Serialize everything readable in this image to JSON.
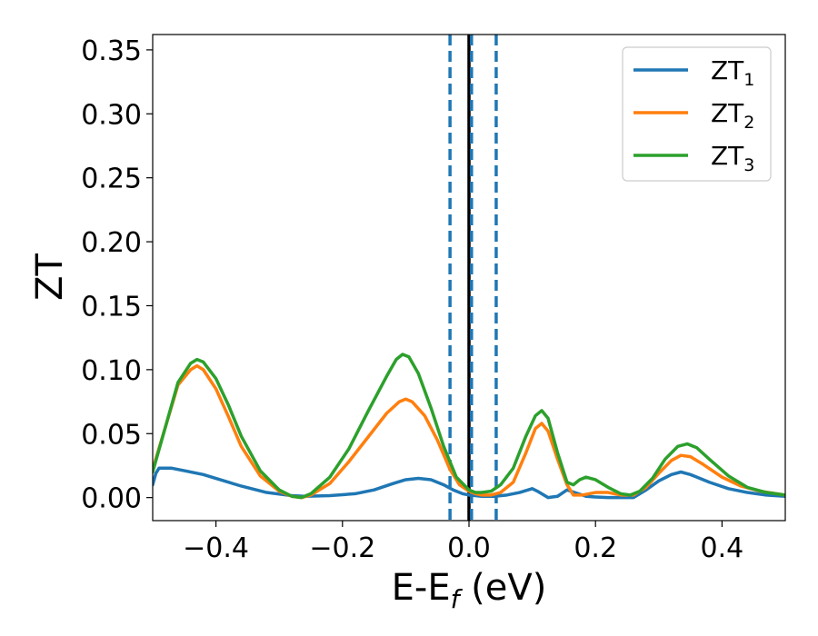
{
  "chart_data": {
    "type": "line",
    "xlabel": {
      "main": "E-E",
      "sub": "f",
      "unit": " (eV)"
    },
    "ylabel": "ZT",
    "xlim": [
      -0.5,
      0.5
    ],
    "ylim": [
      -0.018,
      0.362
    ],
    "xticks": [
      -0.4,
      -0.2,
      0.0,
      0.2,
      0.4
    ],
    "xtick_labels": [
      "−0.4",
      "−0.2",
      "0.0",
      "0.2",
      "0.4"
    ],
    "yticks": [
      0.0,
      0.05,
      0.1,
      0.15,
      0.2,
      0.25,
      0.3,
      0.35
    ],
    "ytick_labels": [
      "0.00",
      "0.05",
      "0.10",
      "0.15",
      "0.20",
      "0.25",
      "0.30",
      "0.35"
    ],
    "grid": false,
    "legend_position": "top-right",
    "vertical_lines": [
      {
        "x": -0.03,
        "color": "#1f77b4",
        "style": "dashed"
      },
      {
        "x": 0.0,
        "color": "#000000",
        "style": "solid"
      },
      {
        "x": 0.004,
        "color": "#1f77b4",
        "style": "dashed"
      },
      {
        "x": 0.043,
        "color": "#1f77b4",
        "style": "dashed"
      }
    ],
    "series": [
      {
        "name": "ZT",
        "name_sub": "1",
        "color": "#1f77b4",
        "points": [
          [
            -0.5,
            0.01
          ],
          [
            -0.495,
            0.019
          ],
          [
            -0.49,
            0.023
          ],
          [
            -0.47,
            0.023
          ],
          [
            -0.45,
            0.021
          ],
          [
            -0.42,
            0.018
          ],
          [
            -0.4,
            0.015
          ],
          [
            -0.36,
            0.009
          ],
          [
            -0.32,
            0.004
          ],
          [
            -0.28,
            0.0015
          ],
          [
            -0.26,
            0.001
          ],
          [
            -0.22,
            0.0015
          ],
          [
            -0.18,
            0.003
          ],
          [
            -0.15,
            0.006
          ],
          [
            -0.12,
            0.011
          ],
          [
            -0.1,
            0.014
          ],
          [
            -0.08,
            0.015
          ],
          [
            -0.06,
            0.014
          ],
          [
            -0.04,
            0.01
          ],
          [
            -0.025,
            0.006
          ],
          [
            -0.01,
            0.003
          ],
          [
            0.0,
            0.002
          ],
          [
            0.01,
            0.0015
          ],
          [
            0.02,
            0.001
          ],
          [
            0.04,
            0.001
          ],
          [
            0.06,
            0.002
          ],
          [
            0.08,
            0.004
          ],
          [
            0.1,
            0.007
          ],
          [
            0.11,
            0.0045
          ],
          [
            0.125,
            0.0
          ],
          [
            0.14,
            0.001
          ],
          [
            0.155,
            0.006
          ],
          [
            0.17,
            0.0035
          ],
          [
            0.185,
            0.001
          ],
          [
            0.2,
            0.0005
          ],
          [
            0.22,
            0.0
          ],
          [
            0.24,
            0.0
          ],
          [
            0.26,
            0.0
          ],
          [
            0.28,
            0.006
          ],
          [
            0.3,
            0.013
          ],
          [
            0.32,
            0.018
          ],
          [
            0.335,
            0.02
          ],
          [
            0.35,
            0.018
          ],
          [
            0.38,
            0.012
          ],
          [
            0.41,
            0.007
          ],
          [
            0.44,
            0.004
          ],
          [
            0.47,
            0.002
          ],
          [
            0.5,
            0.001
          ]
        ]
      },
      {
        "name": "ZT",
        "name_sub": "2",
        "color": "#ff7f0e",
        "points": [
          [
            -0.5,
            0.022
          ],
          [
            -0.48,
            0.055
          ],
          [
            -0.46,
            0.088
          ],
          [
            -0.44,
            0.1
          ],
          [
            -0.43,
            0.103
          ],
          [
            -0.42,
            0.1
          ],
          [
            -0.4,
            0.085
          ],
          [
            -0.38,
            0.063
          ],
          [
            -0.36,
            0.04
          ],
          [
            -0.33,
            0.017
          ],
          [
            -0.3,
            0.005
          ],
          [
            -0.28,
            0.001
          ],
          [
            -0.265,
            0.0
          ],
          [
            -0.25,
            0.002
          ],
          [
            -0.22,
            0.011
          ],
          [
            -0.19,
            0.028
          ],
          [
            -0.16,
            0.047
          ],
          [
            -0.13,
            0.066
          ],
          [
            -0.11,
            0.075
          ],
          [
            -0.1,
            0.077
          ],
          [
            -0.09,
            0.075
          ],
          [
            -0.07,
            0.064
          ],
          [
            -0.05,
            0.045
          ],
          [
            -0.03,
            0.022
          ],
          [
            -0.015,
            0.01
          ],
          [
            0.0,
            0.005
          ],
          [
            0.01,
            0.003
          ],
          [
            0.02,
            0.002
          ],
          [
            0.035,
            0.002
          ],
          [
            0.05,
            0.004
          ],
          [
            0.07,
            0.012
          ],
          [
            0.09,
            0.035
          ],
          [
            0.105,
            0.054
          ],
          [
            0.115,
            0.058
          ],
          [
            0.125,
            0.052
          ],
          [
            0.14,
            0.03
          ],
          [
            0.155,
            0.01
          ],
          [
            0.165,
            0.002
          ],
          [
            0.18,
            0.002
          ],
          [
            0.2,
            0.004
          ],
          [
            0.22,
            0.004
          ],
          [
            0.24,
            0.002
          ],
          [
            0.26,
            0.002
          ],
          [
            0.28,
            0.008
          ],
          [
            0.3,
            0.019
          ],
          [
            0.32,
            0.029
          ],
          [
            0.335,
            0.033
          ],
          [
            0.35,
            0.032
          ],
          [
            0.37,
            0.026
          ],
          [
            0.4,
            0.016
          ],
          [
            0.43,
            0.009
          ],
          [
            0.46,
            0.005
          ],
          [
            0.5,
            0.002
          ]
        ]
      },
      {
        "name": "ZT",
        "name_sub": "3",
        "color": "#2ca02c",
        "points": [
          [
            -0.5,
            0.02
          ],
          [
            -0.48,
            0.055
          ],
          [
            -0.46,
            0.09
          ],
          [
            -0.44,
            0.105
          ],
          [
            -0.43,
            0.108
          ],
          [
            -0.42,
            0.106
          ],
          [
            -0.4,
            0.093
          ],
          [
            -0.38,
            0.072
          ],
          [
            -0.36,
            0.048
          ],
          [
            -0.33,
            0.021
          ],
          [
            -0.3,
            0.006
          ],
          [
            -0.28,
            0.001
          ],
          [
            -0.265,
            0.0
          ],
          [
            -0.25,
            0.003
          ],
          [
            -0.22,
            0.016
          ],
          [
            -0.19,
            0.038
          ],
          [
            -0.16,
            0.067
          ],
          [
            -0.13,
            0.095
          ],
          [
            -0.115,
            0.108
          ],
          [
            -0.105,
            0.112
          ],
          [
            -0.095,
            0.11
          ],
          [
            -0.08,
            0.097
          ],
          [
            -0.06,
            0.07
          ],
          [
            -0.04,
            0.04
          ],
          [
            -0.02,
            0.016
          ],
          [
            0.0,
            0.006
          ],
          [
            0.01,
            0.004
          ],
          [
            0.02,
            0.004
          ],
          [
            0.035,
            0.005
          ],
          [
            0.05,
            0.01
          ],
          [
            0.07,
            0.023
          ],
          [
            0.09,
            0.048
          ],
          [
            0.105,
            0.064
          ],
          [
            0.115,
            0.068
          ],
          [
            0.125,
            0.062
          ],
          [
            0.14,
            0.035
          ],
          [
            0.155,
            0.012
          ],
          [
            0.165,
            0.01
          ],
          [
            0.175,
            0.014
          ],
          [
            0.185,
            0.016
          ],
          [
            0.2,
            0.014
          ],
          [
            0.22,
            0.008
          ],
          [
            0.24,
            0.003
          ],
          [
            0.255,
            0.002
          ],
          [
            0.27,
            0.005
          ],
          [
            0.29,
            0.015
          ],
          [
            0.31,
            0.03
          ],
          [
            0.33,
            0.04
          ],
          [
            0.345,
            0.042
          ],
          [
            0.36,
            0.039
          ],
          [
            0.38,
            0.03
          ],
          [
            0.41,
            0.017
          ],
          [
            0.44,
            0.008
          ],
          [
            0.47,
            0.004
          ],
          [
            0.5,
            0.002
          ]
        ]
      }
    ]
  }
}
